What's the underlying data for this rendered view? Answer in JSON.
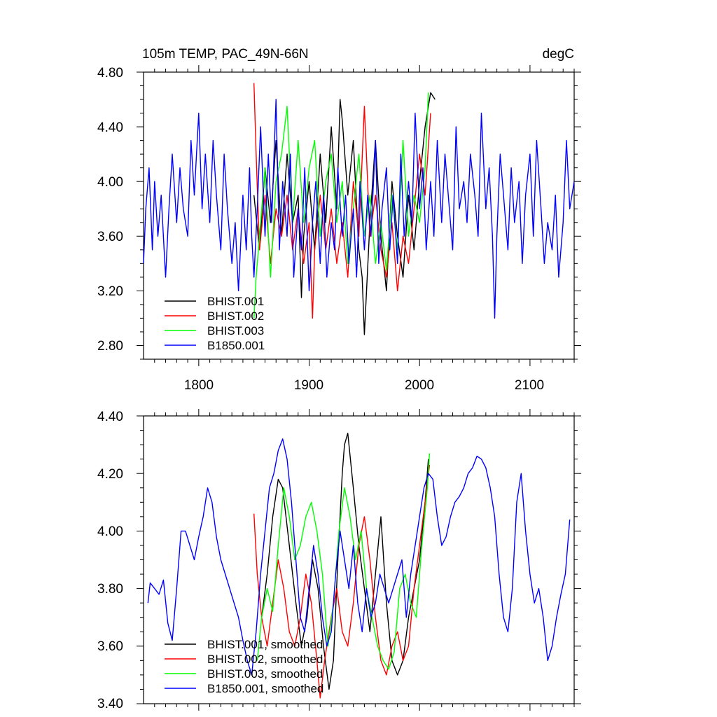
{
  "chart_data": [
    {
      "type": "line",
      "title": "105m TEMP, PAC_49N-66N",
      "units": "degC",
      "xlim": [
        1750,
        2140
      ],
      "ylim": [
        2.7,
        4.8
      ],
      "y_ticks": [
        "4.80",
        "4.40",
        "4.00",
        "3.60",
        "3.20",
        "2.80"
      ],
      "x_ticks": [
        "1800",
        "1900",
        "2000",
        "2100"
      ],
      "legend_position": "bottom-left",
      "series": [
        {
          "name": "BHIST.001",
          "color": "#000000",
          "x": [
            1850,
            1855,
            1860,
            1865,
            1870,
            1875,
            1880,
            1885,
            1890,
            1893,
            1895,
            1900,
            1905,
            1910,
            1915,
            1920,
            1925,
            1928,
            1930,
            1935,
            1940,
            1945,
            1948,
            1950,
            1955,
            1960,
            1965,
            1970,
            1975,
            1980,
            1985,
            1990,
            1995,
            2000,
            2005,
            2010,
            2014
          ],
          "y": [
            3.9,
            3.5,
            4.1,
            3.7,
            4.3,
            3.6,
            4.2,
            3.7,
            3.9,
            3.15,
            3.6,
            4.0,
            3.5,
            4.2,
            3.7,
            4.4,
            3.8,
            4.6,
            4.45,
            3.9,
            4.3,
            3.5,
            3.3,
            2.88,
            3.7,
            4.3,
            3.6,
            3.2,
            4.0,
            3.6,
            3.3,
            3.9,
            3.5,
            4.0,
            4.4,
            4.65,
            4.6
          ]
        },
        {
          "name": "BHIST.002",
          "color": "#ff0000",
          "x": [
            1850,
            1852,
            1855,
            1860,
            1865,
            1870,
            1875,
            1880,
            1885,
            1890,
            1895,
            1900,
            1903,
            1905,
            1910,
            1915,
            1920,
            1925,
            1930,
            1935,
            1940,
            1945,
            1950,
            1955,
            1960,
            1965,
            1970,
            1975,
            1980,
            1985,
            1990,
            1995,
            2000,
            2005,
            2010
          ],
          "y": [
            4.72,
            4.2,
            3.5,
            3.9,
            3.4,
            3.8,
            3.6,
            3.9,
            3.5,
            3.8,
            3.4,
            3.7,
            3.0,
            3.5,
            3.9,
            3.5,
            3.8,
            3.4,
            3.7,
            3.3,
            4.0,
            3.6,
            4.55,
            3.6,
            3.9,
            3.5,
            3.3,
            3.7,
            3.2,
            3.6,
            3.4,
            3.8,
            4.2,
            3.9,
            4.5
          ]
        },
        {
          "name": "BHIST.003",
          "color": "#00ff00",
          "x": [
            1850,
            1852,
            1855,
            1860,
            1865,
            1870,
            1875,
            1880,
            1885,
            1890,
            1895,
            1900,
            1905,
            1910,
            1915,
            1920,
            1925,
            1930,
            1935,
            1940,
            1945,
            1950,
            1955,
            1960,
            1965,
            1970,
            1975,
            1980,
            1985,
            1990,
            1995,
            2000,
            2005,
            2008
          ],
          "y": [
            3.0,
            3.3,
            3.6,
            4.1,
            3.3,
            4.0,
            4.2,
            4.55,
            3.7,
            4.3,
            3.7,
            4.1,
            4.3,
            3.6,
            4.0,
            4.2,
            3.7,
            4.0,
            3.4,
            3.8,
            4.2,
            3.6,
            3.9,
            3.4,
            3.7,
            3.35,
            3.9,
            3.5,
            4.3,
            3.6,
            3.9,
            3.7,
            4.1,
            4.65
          ]
        },
        {
          "name": "B1850.001",
          "color": "#0000ff",
          "x": [
            1750,
            1752,
            1755,
            1758,
            1760,
            1763,
            1766,
            1770,
            1773,
            1776,
            1780,
            1783,
            1786,
            1790,
            1793,
            1796,
            1800,
            1803,
            1806,
            1810,
            1813,
            1816,
            1820,
            1823,
            1826,
            1830,
            1833,
            1836,
            1840,
            1843,
            1846,
            1848,
            1850,
            1853,
            1856,
            1860,
            1863,
            1866,
            1870,
            1873,
            1876,
            1880,
            1883,
            1886,
            1890,
            1893,
            1896,
            1900,
            1903,
            1906,
            1910,
            1913,
            1916,
            1920,
            1923,
            1926,
            1930,
            1933,
            1936,
            1940,
            1943,
            1946,
            1950,
            1953,
            1956,
            1960,
            1963,
            1966,
            1970,
            1973,
            1976,
            1980,
            1983,
            1986,
            1990,
            1993,
            1996,
            2000,
            2003,
            2006,
            2010,
            2013,
            2016,
            2020,
            2023,
            2026,
            2030,
            2033,
            2036,
            2040,
            2043,
            2046,
            2050,
            2053,
            2056,
            2060,
            2063,
            2066,
            2068,
            2070,
            2073,
            2076,
            2080,
            2083,
            2086,
            2090,
            2093,
            2096,
            2100,
            2103,
            2106,
            2110,
            2113,
            2116,
            2120,
            2123,
            2126,
            2130,
            2133,
            2136,
            2140
          ],
          "y": [
            3.4,
            3.8,
            4.1,
            3.5,
            4.0,
            3.6,
            3.9,
            3.3,
            3.8,
            4.2,
            3.7,
            4.1,
            3.8,
            3.6,
            4.3,
            3.9,
            4.5,
            3.8,
            4.2,
            3.7,
            4.3,
            3.9,
            3.5,
            4.2,
            3.8,
            3.4,
            3.7,
            3.2,
            3.9,
            3.5,
            4.1,
            3.6,
            3.3,
            3.8,
            4.4,
            3.6,
            4.2,
            3.7,
            4.6,
            3.5,
            4.0,
            3.6,
            4.2,
            3.3,
            3.8,
            3.5,
            4.1,
            3.2,
            3.7,
            4.0,
            3.4,
            3.9,
            3.3,
            3.7,
            3.5,
            4.1,
            3.6,
            3.9,
            3.4,
            3.8,
            3.3,
            4.0,
            3.5,
            3.9,
            3.6,
            4.3,
            3.4,
            3.8,
            4.1,
            3.5,
            3.9,
            3.4,
            4.2,
            3.6,
            4.0,
            3.7,
            4.5,
            3.8,
            4.1,
            3.5,
            4.0,
            3.6,
            4.3,
            3.7,
            4.2,
            3.9,
            3.5,
            4.4,
            3.8,
            4.0,
            3.7,
            4.2,
            3.9,
            3.6,
            4.5,
            3.8,
            4.1,
            3.6,
            3.0,
            3.6,
            4.2,
            3.9,
            3.5,
            4.1,
            3.7,
            4.0,
            3.4,
            3.9,
            4.2,
            3.6,
            4.3,
            3.8,
            3.4,
            3.7,
            3.5,
            3.9,
            3.3,
            3.7,
            4.3,
            3.8,
            4.0
          ]
        }
      ]
    },
    {
      "type": "line",
      "xlim": [
        1750,
        2140
      ],
      "ylim": [
        3.4,
        4.4
      ],
      "y_ticks": [
        "4.40",
        "4.20",
        "4.00",
        "3.80",
        "3.60",
        "3.40"
      ],
      "legend_position": "bottom-left",
      "series": [
        {
          "name": "BHIST.001, smoothed",
          "color": "#000000",
          "x": [
            1857,
            1862,
            1867,
            1872,
            1876,
            1882,
            1888,
            1893,
            1898,
            1903,
            1908,
            1913,
            1918,
            1922,
            1926,
            1930,
            1932,
            1935,
            1940,
            1945,
            1950,
            1955,
            1960,
            1965,
            1970,
            1975,
            1980,
            1985,
            1990,
            1995,
            2000,
            2005,
            2008
          ],
          "y": [
            3.7,
            3.85,
            4.05,
            4.18,
            4.15,
            3.95,
            3.75,
            3.6,
            3.7,
            3.9,
            3.8,
            3.6,
            3.45,
            3.55,
            3.9,
            4.2,
            4.3,
            4.34,
            4.15,
            3.95,
            3.8,
            3.65,
            3.85,
            4.05,
            3.75,
            3.55,
            3.5,
            3.55,
            3.7,
            3.8,
            3.9,
            4.1,
            4.25
          ]
        },
        {
          "name": "BHIST.002, smoothed",
          "color": "#ff0000",
          "x": [
            1850,
            1853,
            1857,
            1862,
            1867,
            1872,
            1877,
            1882,
            1887,
            1892,
            1897,
            1902,
            1907,
            1910,
            1914,
            1920,
            1925,
            1930,
            1935,
            1940,
            1945,
            1950,
            1955,
            1960,
            1965,
            1970,
            1975,
            1980,
            1985,
            1990,
            1995,
            2000,
            2005,
            2009
          ],
          "y": [
            4.06,
            3.85,
            3.7,
            3.6,
            3.75,
            3.9,
            3.8,
            3.65,
            3.6,
            3.7,
            3.85,
            3.75,
            3.55,
            3.42,
            3.55,
            3.7,
            3.8,
            3.65,
            3.6,
            3.75,
            3.95,
            4.05,
            3.9,
            3.7,
            3.55,
            3.5,
            3.6,
            3.65,
            3.55,
            3.6,
            3.8,
            3.95,
            4.1,
            4.23
          ]
        },
        {
          "name": "BHIST.003, smoothed",
          "color": "#00ff00",
          "x": [
            1853,
            1857,
            1862,
            1867,
            1872,
            1877,
            1882,
            1887,
            1892,
            1897,
            1902,
            1907,
            1912,
            1917,
            1922,
            1927,
            1932,
            1937,
            1942,
            1947,
            1952,
            1957,
            1962,
            1967,
            1972,
            1977,
            1982,
            1987,
            1992,
            1997,
            2002,
            2007,
            2009
          ],
          "y": [
            3.55,
            3.7,
            3.8,
            3.72,
            3.95,
            4.15,
            4.05,
            3.9,
            3.95,
            4.05,
            4.1,
            4.0,
            3.85,
            3.6,
            3.75,
            4.0,
            4.15,
            4.05,
            3.9,
            4.0,
            3.8,
            3.7,
            3.6,
            3.55,
            3.52,
            3.58,
            3.8,
            3.85,
            3.75,
            3.7,
            3.95,
            4.15,
            4.27
          ]
        },
        {
          "name": "B1850.001, smoothed",
          "color": "#0000ff",
          "x": [
            1754,
            1756,
            1760,
            1764,
            1768,
            1772,
            1776,
            1780,
            1784,
            1788,
            1792,
            1796,
            1800,
            1804,
            1808,
            1812,
            1816,
            1820,
            1824,
            1828,
            1832,
            1836,
            1840,
            1844,
            1848,
            1852,
            1856,
            1860,
            1864,
            1868,
            1872,
            1876,
            1880,
            1884,
            1888,
            1892,
            1896,
            1900,
            1904,
            1908,
            1912,
            1916,
            1920,
            1924,
            1928,
            1932,
            1936,
            1940,
            1944,
            1948,
            1952,
            1956,
            1960,
            1964,
            1968,
            1972,
            1976,
            1980,
            1984,
            1988,
            1992,
            1996,
            2000,
            2004,
            2008,
            2012,
            2016,
            2020,
            2024,
            2028,
            2032,
            2036,
            2040,
            2044,
            2048,
            2052,
            2056,
            2060,
            2064,
            2068,
            2072,
            2076,
            2080,
            2084,
            2088,
            2092,
            2096,
            2100,
            2104,
            2108,
            2112,
            2116,
            2120,
            2124,
            2128,
            2132,
            2136
          ],
          "y": [
            3.75,
            3.82,
            3.8,
            3.78,
            3.83,
            3.68,
            3.62,
            3.8,
            4.0,
            4.0,
            3.95,
            3.9,
            3.98,
            4.05,
            4.15,
            4.1,
            3.98,
            3.9,
            3.85,
            3.8,
            3.75,
            3.7,
            3.62,
            3.55,
            3.5,
            3.65,
            3.85,
            4.0,
            4.15,
            4.2,
            4.28,
            4.32,
            4.25,
            4.1,
            3.9,
            3.7,
            3.65,
            3.8,
            3.95,
            3.85,
            3.7,
            3.6,
            3.65,
            3.85,
            4.0,
            3.9,
            3.8,
            3.95,
            3.75,
            3.65,
            3.8,
            3.7,
            3.75,
            3.85,
            3.8,
            3.75,
            3.8,
            3.85,
            3.9,
            3.7,
            3.85,
            3.95,
            4.05,
            4.15,
            4.2,
            4.18,
            4.05,
            3.95,
            3.98,
            4.05,
            4.1,
            4.12,
            4.15,
            4.2,
            4.22,
            4.26,
            4.25,
            4.22,
            4.15,
            4.05,
            3.85,
            3.7,
            3.65,
            3.8,
            4.1,
            4.2,
            4.0,
            3.85,
            3.75,
            3.8,
            3.7,
            3.55,
            3.6,
            3.7,
            3.78,
            3.85,
            4.04
          ]
        }
      ]
    }
  ]
}
